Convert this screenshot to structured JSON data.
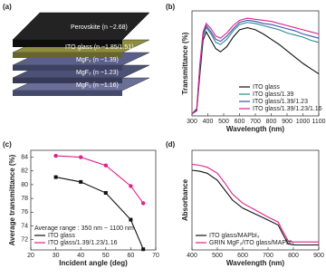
{
  "diagram": {
    "panel_label": "(a)",
    "layers": [
      "Perovskite (n ~2.68)",
      "ITO glass (n ~1.85/1.51)",
      "MgF₂ (n ~1.39)",
      "MgF₂ (n ~1.23)",
      "MgF₂ (n ~1.16)"
    ]
  },
  "chart_data": [
    {
      "type": "line",
      "panel_label": "(b)",
      "x_label": "Wavelength (nm)",
      "y_label": "Transmittance (%)",
      "x": [
        300,
        330,
        350,
        370,
        390,
        420,
        450,
        480,
        520,
        560,
        600,
        650,
        700,
        750,
        800,
        850,
        900,
        950,
        1000,
        1050,
        1100
      ],
      "xlim": [
        300,
        1100
      ],
      "xticks": [
        300,
        400,
        500,
        600,
        700,
        800,
        900,
        1000,
        1100
      ],
      "ylim": [
        0,
        100
      ],
      "legend": "lower right",
      "series": [
        {
          "name": "ITO glass",
          "color": "#111111",
          "values": [
            2,
            5,
            40,
            72,
            80,
            72,
            64,
            61,
            66,
            75,
            82,
            84,
            82,
            78,
            73,
            68,
            62,
            56,
            50,
            45,
            40
          ]
        },
        {
          "name": "ITO glass/1.39",
          "color": "#2a8a8a",
          "values": [
            2,
            6,
            45,
            76,
            84,
            78,
            70,
            68,
            73,
            81,
            87,
            89,
            88,
            86,
            84,
            82,
            79,
            77,
            75,
            72,
            70
          ]
        },
        {
          "name": "ITO glass/1.39/1.23",
          "color": "#3a4fb0",
          "values": [
            2,
            6,
            47,
            78,
            86,
            80,
            73,
            71,
            76,
            83,
            89,
            91,
            90,
            88,
            87,
            85,
            83,
            81,
            78,
            76,
            74
          ]
        },
        {
          "name": "ITO glass/1.39/1.23/1.16",
          "color": "#e0208a",
          "values": [
            2,
            7,
            50,
            80,
            88,
            83,
            76,
            74,
            79,
            86,
            91,
            93,
            92,
            91,
            90,
            88,
            86,
            84,
            82,
            80,
            78
          ]
        }
      ]
    },
    {
      "type": "line",
      "panel_label": "(c)",
      "x_label": "Incident angle (deg)",
      "y_label": "Average transmittance (%)",
      "annotation": "Average range : 350 nm ~ 1100 nm",
      "x": [
        30,
        40,
        50,
        60,
        65
      ],
      "xlim": [
        20,
        70
      ],
      "xticks": [
        20,
        30,
        40,
        50,
        60,
        70
      ],
      "ylim": [
        70.5,
        85
      ],
      "yticks": [
        72,
        74,
        76,
        78,
        80,
        82,
        84
      ],
      "legend": "lower left",
      "series": [
        {
          "name": "ITO glass",
          "color": "#111111",
          "marker": "square",
          "values": [
            81.1,
            80.4,
            78.8,
            74.9,
            70.6
          ]
        },
        {
          "name": "ITO glass/1.39/1.23/1.16",
          "color": "#e0208a",
          "marker": "circle",
          "values": [
            84.2,
            84.0,
            82.8,
            79.8,
            77.3
          ]
        }
      ]
    },
    {
      "type": "line",
      "panel_label": "(d)",
      "x_label": "Wavelength (nm)",
      "y_label": "Absorbance",
      "x": [
        400,
        430,
        460,
        500,
        530,
        560,
        600,
        650,
        700,
        740,
        760,
        780,
        800,
        850,
        900
      ],
      "xlim": [
        400,
        900
      ],
      "xticks": [
        400,
        500,
        600,
        700,
        800,
        900
      ],
      "ylim": [
        0,
        100
      ],
      "legend": "lower left",
      "series": [
        {
          "name": "ITO glass/MAPbI₃",
          "color": "#111111",
          "values": [
            80,
            79,
            77,
            70,
            60,
            50,
            42,
            36,
            30,
            25,
            15,
            6,
            5,
            5,
            5
          ]
        },
        {
          "name": "GRIN MgF₂/ITO glass/MAPbI₃",
          "color": "#e0208a",
          "values": [
            86,
            85,
            83,
            77,
            67,
            56,
            47,
            40,
            33,
            28,
            18,
            9,
            8,
            8,
            8
          ]
        }
      ]
    }
  ]
}
